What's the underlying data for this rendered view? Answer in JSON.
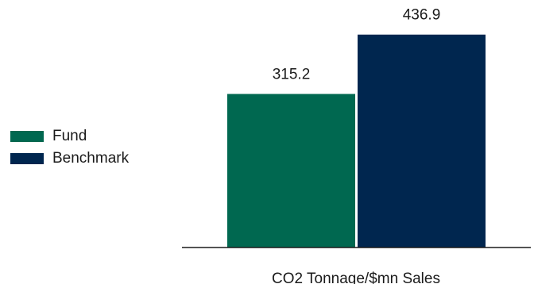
{
  "chart_data": {
    "type": "bar",
    "categories": [
      "CO2 Tonnage/$mn Sales"
    ],
    "series": [
      {
        "name": "Fund",
        "values": [
          315.2
        ],
        "color": "#006850"
      },
      {
        "name": "Benchmark",
        "values": [
          436.9
        ],
        "color": "#00264f"
      }
    ],
    "ylim": [
      0,
      508
    ],
    "grid": false,
    "legend_position": "left"
  }
}
